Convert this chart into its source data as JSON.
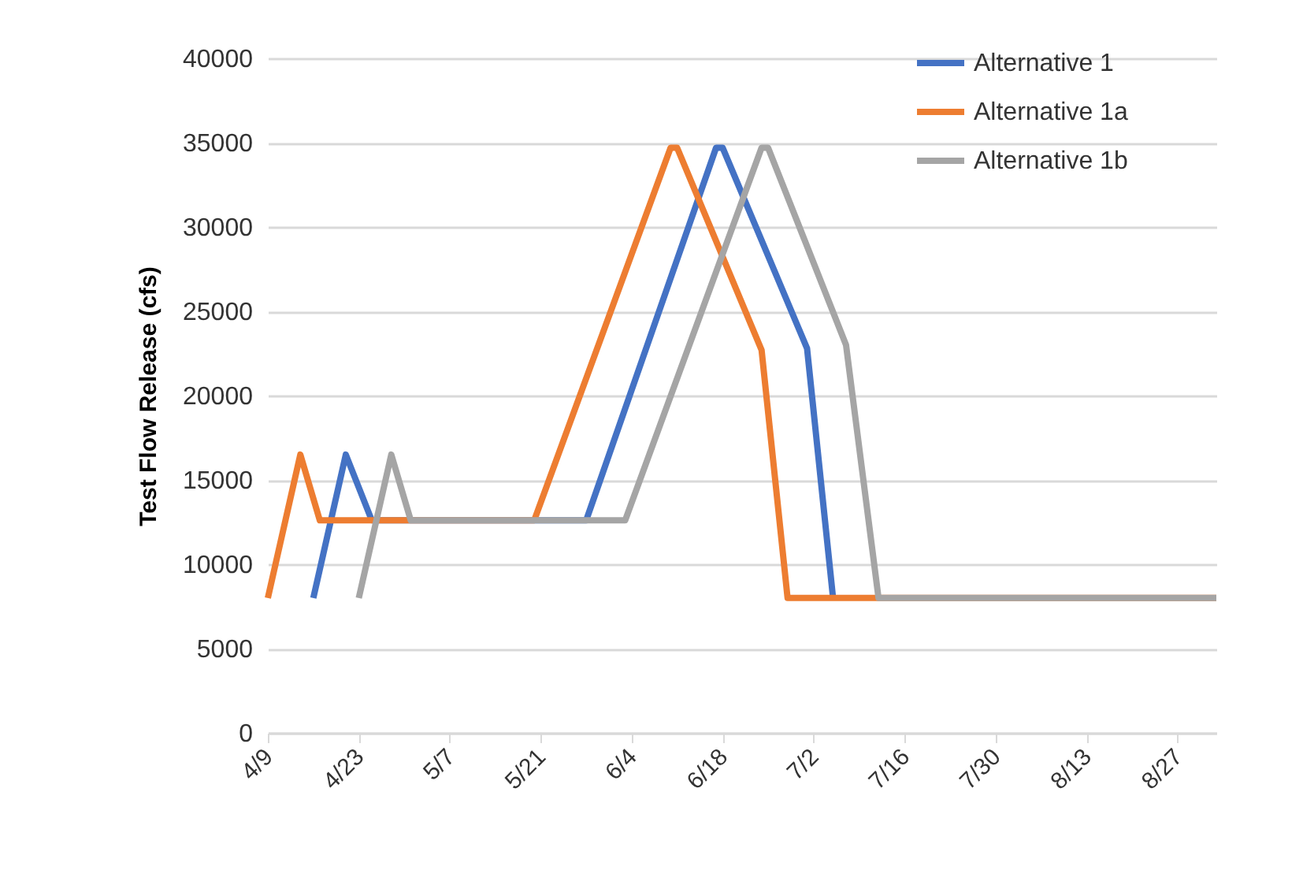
{
  "chart_data": {
    "type": "line",
    "ylabel": "Test Flow Release (cfs)",
    "xlim": [
      "--04-09",
      "--09-02"
    ],
    "xticks": [
      {
        "value": "--04-09",
        "label": "4/9"
      },
      {
        "value": "--04-23",
        "label": "4/23"
      },
      {
        "value": "--05-07",
        "label": "5/7"
      },
      {
        "value": "--05-21",
        "label": "5/21"
      },
      {
        "value": "--06-04",
        "label": "6/4"
      },
      {
        "value": "--06-18",
        "label": "6/18"
      },
      {
        "value": "--07-02",
        "label": "7/2"
      },
      {
        "value": "--07-16",
        "label": "7/16"
      },
      {
        "value": "--07-30",
        "label": "7/30"
      },
      {
        "value": "--08-13",
        "label": "8/13"
      },
      {
        "value": "--08-27",
        "label": "8/27"
      }
    ],
    "ylim": [
      0,
      40000
    ],
    "yticks": [
      0,
      5000,
      10000,
      15000,
      20000,
      25000,
      30000,
      35000,
      40000
    ],
    "grid": "y",
    "legend": "top right",
    "series": [
      {
        "name": "Alternative 1",
        "color": "#4472c4",
        "x": [
          "--04-16",
          "--04-21",
          "--04-25",
          "--05-28",
          "--06-17",
          "--06-18",
          "--07-01",
          "--07-05"
        ],
        "values": [
          8000,
          16500,
          12600,
          12600,
          34700,
          34700,
          22800,
          8000
        ]
      },
      {
        "name": "Alternative 1a",
        "color": "#ed7d31",
        "x": [
          "--04-09",
          "--04-14",
          "--04-17",
          "--05-20",
          "--06-10",
          "--06-11",
          "--06-24",
          "--06-28",
          "--09-02"
        ],
        "values": [
          8000,
          16500,
          12600,
          12600,
          34700,
          34700,
          22700,
          8000,
          8000
        ]
      },
      {
        "name": "Alternative 1b",
        "color": "#a5a5a5",
        "x": [
          "--04-23",
          "--04-28",
          "--05-01",
          "--06-03",
          "--06-24",
          "--06-25",
          "--07-07",
          "--07-12",
          "--09-02"
        ],
        "values": [
          8000,
          16500,
          12600,
          12600,
          34700,
          34700,
          23000,
          8000,
          8000
        ]
      }
    ]
  }
}
